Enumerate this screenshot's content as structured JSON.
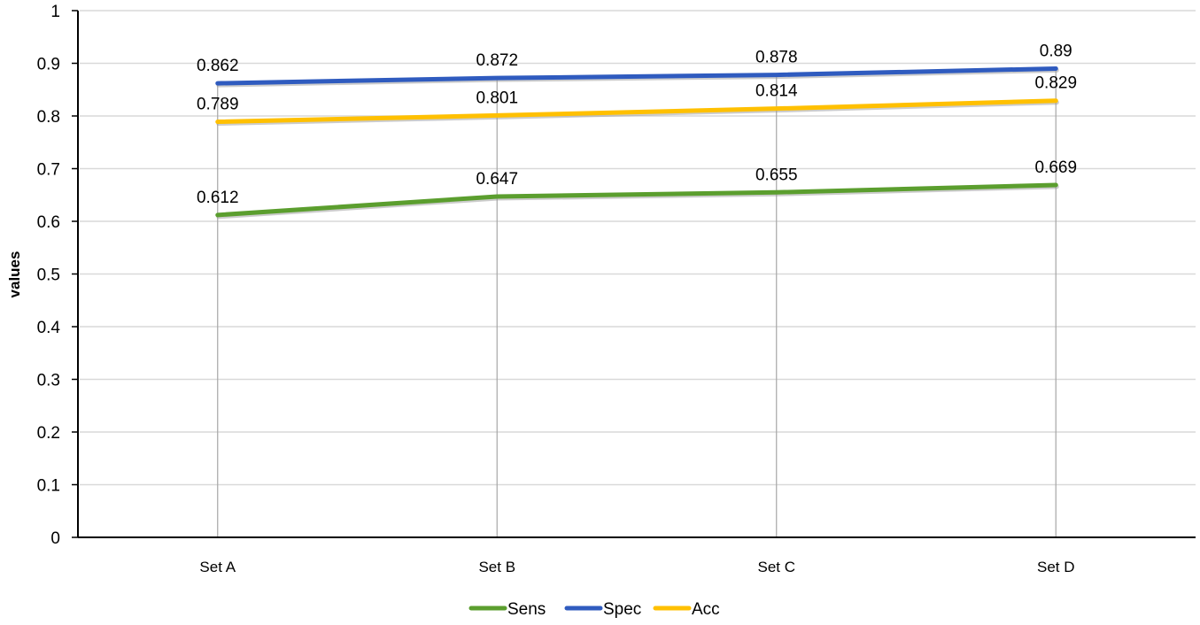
{
  "chart_data": {
    "type": "line",
    "title": "",
    "xlabel": "",
    "ylabel": "values",
    "categories": [
      "Set A",
      "Set B",
      "Set C",
      "Set D"
    ],
    "ylim": [
      0,
      1
    ],
    "yticks": [
      "0",
      "0.1",
      "0.2",
      "0.3",
      "0.4",
      "0.5",
      "0.6",
      "0.7",
      "0.8",
      "0.9",
      "1"
    ],
    "grid": true,
    "legend_position": "bottom",
    "series": [
      {
        "name": "Sens",
        "color": "#5b9e2e",
        "values": [
          0.612,
          0.647,
          0.655,
          0.669
        ],
        "labels": [
          "0.612",
          "0.647",
          "0.655",
          "0.669"
        ]
      },
      {
        "name": "Spec",
        "color": "#2f5bbf",
        "values": [
          0.862,
          0.872,
          0.878,
          0.89
        ],
        "labels": [
          "0.862",
          "0.872",
          "0.878",
          "0.89"
        ]
      },
      {
        "name": "Acc",
        "color": "#ffc000",
        "values": [
          0.789,
          0.801,
          0.814,
          0.829
        ],
        "labels": [
          "0.789",
          "0.801",
          "0.814",
          "0.829"
        ]
      }
    ]
  }
}
